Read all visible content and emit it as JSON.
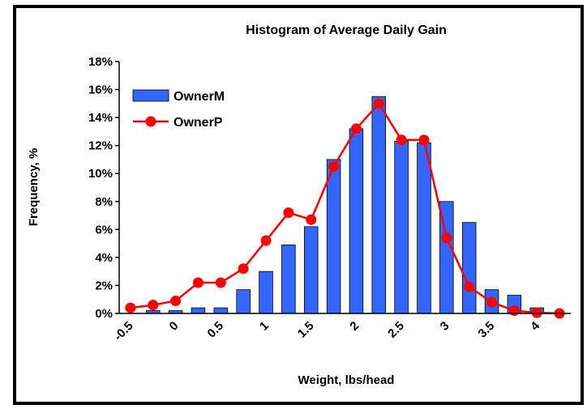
{
  "chart_data": {
    "type": "bar_line",
    "title": "Histogram of Average Daily Gain",
    "x_label": "Weight, lbs/head",
    "y_label": "Frequency, %",
    "categories": [
      "-0.5",
      null,
      "0",
      null,
      "0.5",
      null,
      "1",
      null,
      "1.5",
      null,
      "2",
      null,
      "2.5",
      null,
      "3",
      null,
      "3.5",
      null,
      "4",
      null
    ],
    "series": [
      {
        "name": "OwnerM",
        "type": "bar",
        "color": "#3366ff",
        "values": [
          0,
          0.2,
          0.2,
          0.4,
          0.4,
          1.7,
          3.0,
          4.9,
          6.2,
          11.0,
          13.2,
          15.5,
          12.3,
          12.2,
          8.0,
          6.5,
          1.7,
          1.3,
          0.4,
          0
        ]
      },
      {
        "name": "OwnerP",
        "type": "line",
        "color": "#ff0000",
        "values": [
          0.4,
          0.6,
          0.9,
          2.2,
          2.2,
          3.2,
          5.2,
          7.2,
          6.7,
          10.5,
          13.2,
          15.0,
          12.4,
          12.4,
          5.4,
          1.9,
          0.8,
          0.2,
          0.05,
          0.0
        ]
      }
    ],
    "ylim": [
      0,
      18
    ],
    "yticks": [
      {
        "value": 0,
        "label": "0%"
      },
      {
        "value": 2,
        "label": "2%"
      },
      {
        "value": 4,
        "label": "4%"
      },
      {
        "value": 6,
        "label": "6%"
      },
      {
        "value": 8,
        "label": "8%"
      },
      {
        "value": 10,
        "label": "10%"
      },
      {
        "value": 12,
        "label": "12%"
      },
      {
        "value": 14,
        "label": "14%"
      },
      {
        "value": 16,
        "label": "16%"
      },
      {
        "value": 18,
        "label": "18%"
      }
    ],
    "legend": "upper-left"
  }
}
